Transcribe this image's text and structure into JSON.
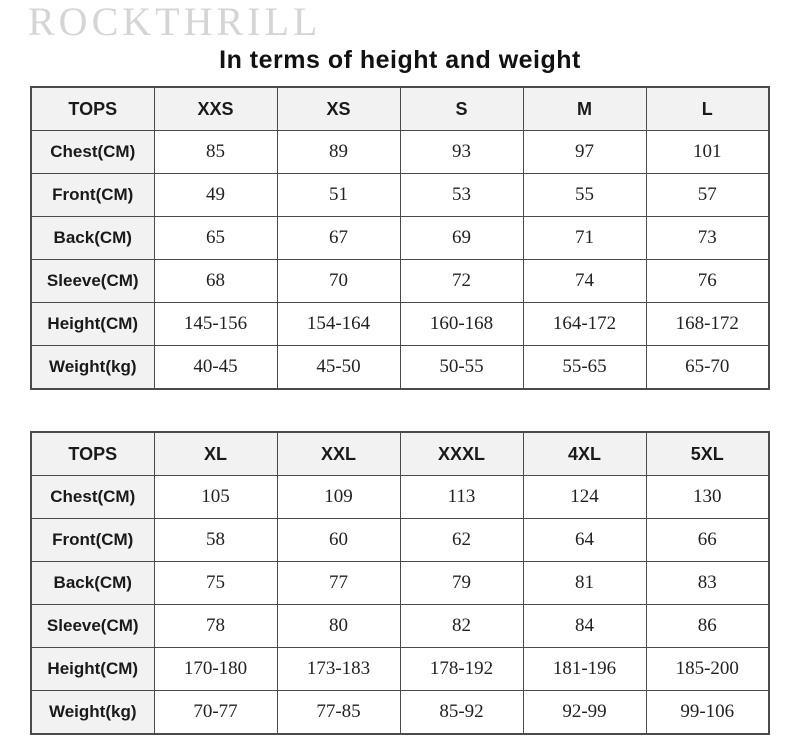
{
  "brand": "ROCKTHRILL",
  "title": "In terms of height and weight",
  "colors": {
    "brand_text": "#d5d5d5",
    "table_border": "#4a4a4a",
    "label_cell_bg": "#f2f2f2",
    "title_text": "#111111"
  },
  "tables": [
    {
      "header": [
        "TOPS",
        "XXS",
        "XS",
        "S",
        "M",
        "L"
      ],
      "rows": [
        {
          "label": "Chest(CM)",
          "values": [
            "85",
            "89",
            "93",
            "97",
            "101"
          ]
        },
        {
          "label": "Front(CM)",
          "values": [
            "49",
            "51",
            "53",
            "55",
            "57"
          ]
        },
        {
          "label": "Back(CM)",
          "values": [
            "65",
            "67",
            "69",
            "71",
            "73"
          ]
        },
        {
          "label": "Sleeve(CM)",
          "values": [
            "68",
            "70",
            "72",
            "74",
            "76"
          ]
        },
        {
          "label": "Height(CM)",
          "values": [
            "145-156",
            "154-164",
            "160-168",
            "164-172",
            "168-172"
          ]
        },
        {
          "label": "Weight(kg)",
          "values": [
            "40-45",
            "45-50",
            "50-55",
            "55-65",
            "65-70"
          ]
        }
      ]
    },
    {
      "header": [
        "TOPS",
        "XL",
        "XXL",
        "XXXL",
        "4XL",
        "5XL"
      ],
      "rows": [
        {
          "label": "Chest(CM)",
          "values": [
            "105",
            "109",
            "113",
            "124",
            "130"
          ]
        },
        {
          "label": "Front(CM)",
          "values": [
            "58",
            "60",
            "62",
            "64",
            "66"
          ]
        },
        {
          "label": "Back(CM)",
          "values": [
            "75",
            "77",
            "79",
            "81",
            "83"
          ]
        },
        {
          "label": "Sleeve(CM)",
          "values": [
            "78",
            "80",
            "82",
            "84",
            "86"
          ]
        },
        {
          "label": "Height(CM)",
          "values": [
            "170-180",
            "173-183",
            "178-192",
            "181-196",
            "185-200"
          ]
        },
        {
          "label": "Weight(kg)",
          "values": [
            "70-77",
            "77-85",
            "85-92",
            "92-99",
            "99-106"
          ]
        }
      ]
    }
  ]
}
